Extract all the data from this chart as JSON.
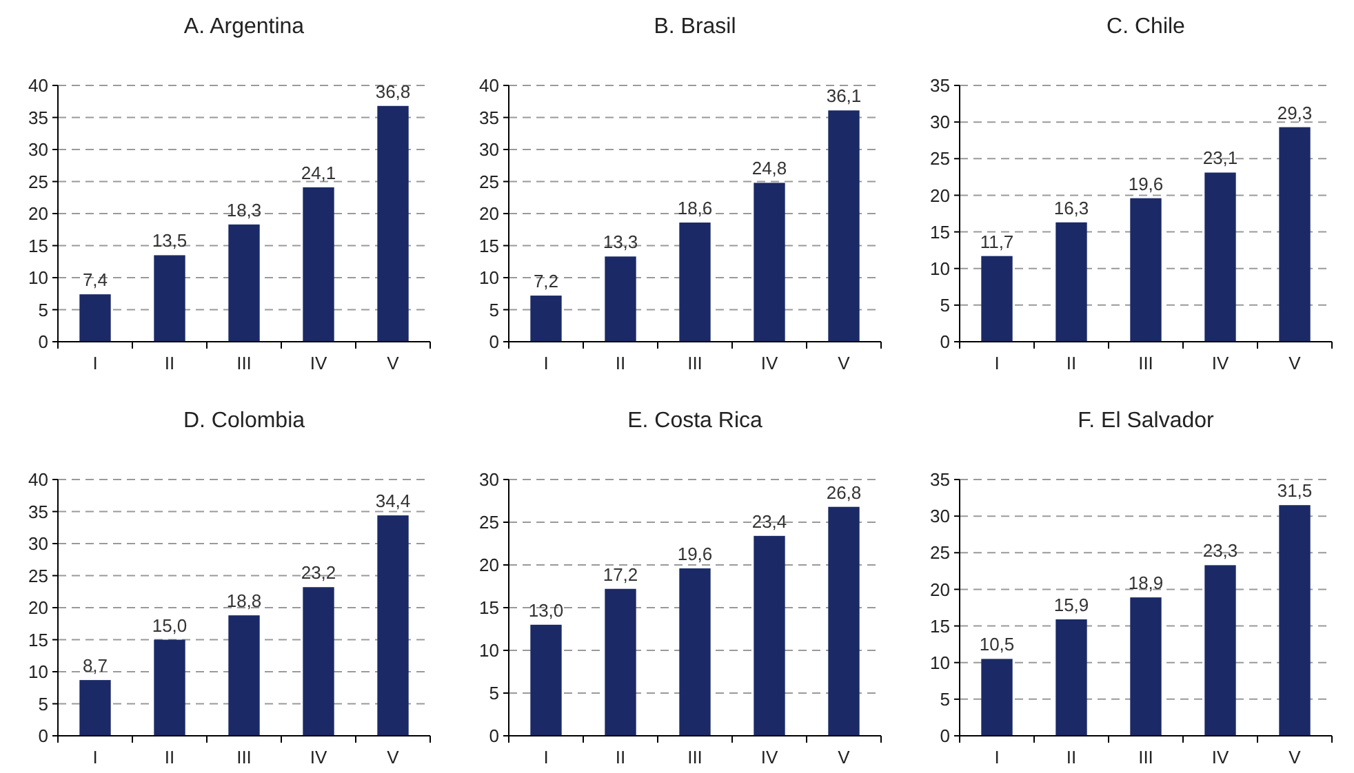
{
  "chart_data": [
    {
      "type": "bar",
      "title": "A. Argentina",
      "categories": [
        "I",
        "II",
        "III",
        "IV",
        "V"
      ],
      "values": [
        7.4,
        13.5,
        18.3,
        24.1,
        36.8
      ],
      "value_labels": [
        "7,4",
        "13,5",
        "18,3",
        "24,1",
        "36,8"
      ],
      "color": "#1b2a66",
      "ylim": [
        0,
        40
      ],
      "yticks": [
        0,
        5,
        10,
        15,
        20,
        25,
        30,
        35,
        40
      ],
      "grid": "y"
    },
    {
      "type": "bar",
      "title": "B. Brasil",
      "categories": [
        "I",
        "II",
        "III",
        "IV",
        "V"
      ],
      "values": [
        7.2,
        13.3,
        18.6,
        24.8,
        36.1
      ],
      "value_labels": [
        "7,2",
        "13,3",
        "18,6",
        "24,8",
        "36,1"
      ],
      "color": "#1b2a66",
      "ylim": [
        0,
        40
      ],
      "yticks": [
        0,
        5,
        10,
        15,
        20,
        25,
        30,
        35,
        40
      ],
      "grid": "y"
    },
    {
      "type": "bar",
      "title": "C. Chile",
      "categories": [
        "I",
        "II",
        "III",
        "IV",
        "V"
      ],
      "values": [
        11.7,
        16.3,
        19.6,
        23.1,
        29.3
      ],
      "value_labels": [
        "11,7",
        "16,3",
        "19,6",
        "23,1",
        "29,3"
      ],
      "color": "#1b2a66",
      "ylim": [
        0,
        35
      ],
      "yticks": [
        0,
        5,
        10,
        15,
        20,
        25,
        30,
        35
      ],
      "grid": "y"
    },
    {
      "type": "bar",
      "title": "D. Colombia",
      "categories": [
        "I",
        "II",
        "III",
        "IV",
        "V"
      ],
      "values": [
        8.7,
        15.0,
        18.8,
        23.2,
        34.4
      ],
      "value_labels": [
        "8,7",
        "15,0",
        "18,8",
        "23,2",
        "34,4"
      ],
      "color": "#1b2a66",
      "ylim": [
        0,
        40
      ],
      "yticks": [
        0,
        5,
        10,
        15,
        20,
        25,
        30,
        35,
        40
      ],
      "grid": "y"
    },
    {
      "type": "bar",
      "title": "E. Costa Rica",
      "categories": [
        "I",
        "II",
        "III",
        "IV",
        "V"
      ],
      "values": [
        13.0,
        17.2,
        19.6,
        23.4,
        26.8
      ],
      "value_labels": [
        "13,0",
        "17,2",
        "19,6",
        "23,4",
        "26,8"
      ],
      "color": "#1b2a66",
      "ylim": [
        0,
        30
      ],
      "yticks": [
        0,
        5,
        10,
        15,
        20,
        25,
        30
      ],
      "grid": "y"
    },
    {
      "type": "bar",
      "title": "F. El Salvador",
      "categories": [
        "I",
        "II",
        "III",
        "IV",
        "V"
      ],
      "values": [
        10.5,
        15.9,
        18.9,
        23.3,
        31.5
      ],
      "value_labels": [
        "10,5",
        "15,9",
        "18,9",
        "23,3",
        "31,5"
      ],
      "color": "#1b2a66",
      "ylim": [
        0,
        35
      ],
      "yticks": [
        0,
        5,
        10,
        15,
        20,
        25,
        30,
        35
      ],
      "grid": "y"
    }
  ]
}
